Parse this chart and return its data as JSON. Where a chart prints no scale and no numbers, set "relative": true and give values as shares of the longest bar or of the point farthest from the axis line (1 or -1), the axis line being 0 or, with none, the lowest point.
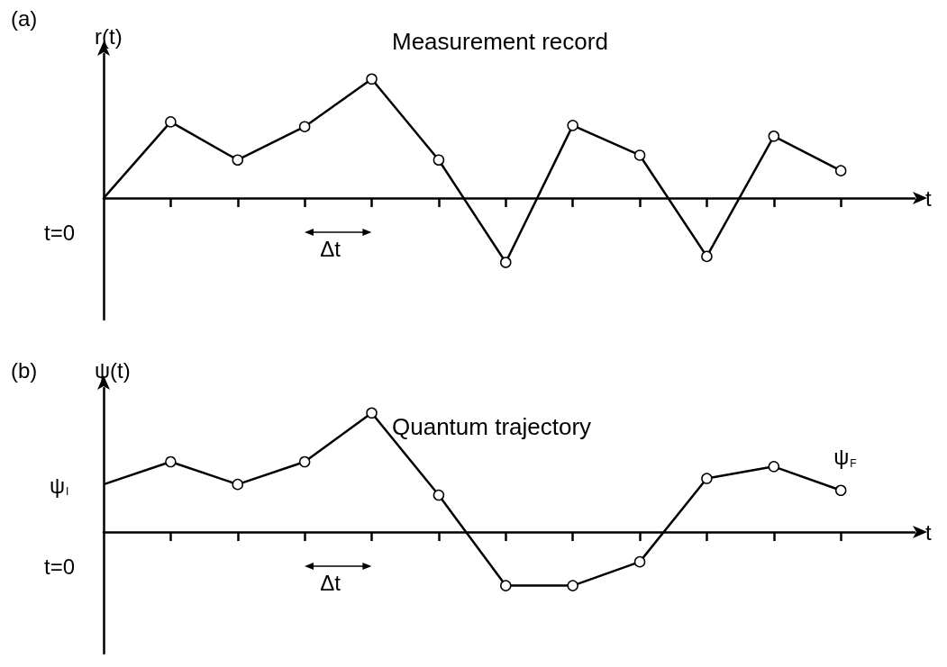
{
  "chart_data": [
    {
      "type": "line",
      "title": "Measurement record",
      "ylabel": "r(t)",
      "xlabel": "t",
      "relative": true,
      "categories": [
        null,
        null,
        null,
        null,
        null,
        null,
        null,
        null,
        null,
        null,
        null,
        null
      ],
      "series": [
        {
          "color": "#000000",
          "values": [
            0,
            0.64,
            0.32,
            0.6,
            1,
            0.32,
            -0.54,
            0.61,
            0.36,
            -0.49,
            0.52,
            0.23
          ]
        }
      ],
      "marker": "circle",
      "line_style": "solid",
      "grid": false,
      "annotations": [
        "(a)",
        "t=0",
        "Δt"
      ]
    },
    {
      "type": "line",
      "title": "Quantum trajectory",
      "ylabel": "ψ(t)",
      "xlabel": "t",
      "relative": true,
      "categories": [
        null,
        null,
        null,
        null,
        null,
        null,
        null,
        null,
        null,
        null,
        null,
        null
      ],
      "series": [
        {
          "color": "#000000",
          "values": [
            0.4,
            0.59,
            0.4,
            0.59,
            1,
            0.31,
            -0.45,
            -0.45,
            -0.25,
            0.45,
            0.55,
            0.35
          ]
        }
      ],
      "marker": "circle",
      "line_style": "solid",
      "grid": false,
      "annotations": [
        "(b)",
        "t=0",
        "Δt",
        "ψ$_{I}$",
        "ψ$_{F}$"
      ]
    }
  ]
}
